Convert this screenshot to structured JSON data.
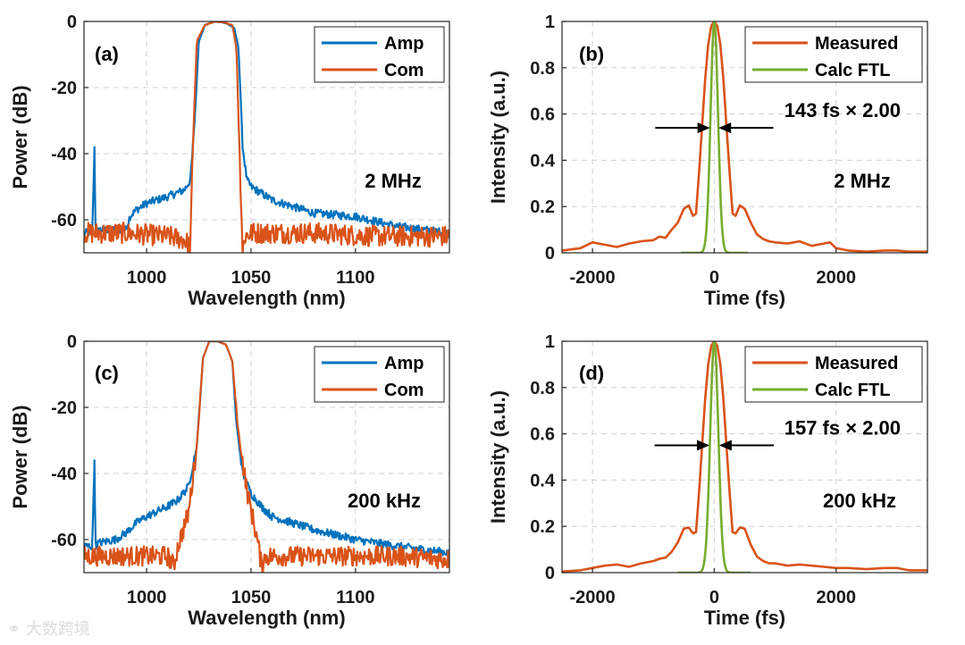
{
  "watermark": "大数跨境",
  "colors": {
    "amp": "#0072BD",
    "com": "#D95319",
    "measured": "#D95319",
    "ftl": "#77AC30"
  },
  "chart_data": [
    {
      "id": "a",
      "type": "line",
      "panel_label": "(a)",
      "xlabel": "Wavelength (nm)",
      "ylabel": "Power (dB)",
      "xlim": [
        970,
        1145
      ],
      "ylim": [
        -70,
        0
      ],
      "xticks": [
        1000,
        1050,
        1100
      ],
      "xtick_labels": [
        "1000",
        "1050",
        "1100"
      ],
      "yticks": [
        0,
        -20,
        -40,
        -60
      ],
      "ytick_labels": [
        "0",
        "-20",
        "-40",
        "-60"
      ],
      "annotation": "2 MHz",
      "legend": {
        "position": "top-right",
        "entries": [
          "Amp",
          "Com"
        ]
      },
      "series": [
        {
          "name": "Amp",
          "color_key": "amp",
          "noise": 1.2,
          "x": [
            970,
            974,
            975,
            975.5,
            976,
            977,
            985,
            990,
            992,
            995,
            1000,
            1010,
            1018,
            1021,
            1023,
            1025,
            1028,
            1033,
            1038,
            1042,
            1044,
            1046,
            1048,
            1050,
            1060,
            1080,
            1100,
            1120,
            1145
          ],
          "y": [
            -64,
            -64,
            -38,
            -64,
            -64,
            -63,
            -63,
            -63,
            -59,
            -57,
            -55,
            -53,
            -51,
            -48,
            -30,
            -6,
            -1,
            0,
            -0.5,
            -2,
            -8,
            -38,
            -48,
            -50,
            -54,
            -58,
            -59,
            -62,
            -64
          ]
        },
        {
          "name": "Com",
          "color_key": "com",
          "noise": 3.2,
          "x": [
            970,
            990,
            1010,
            1018,
            1021,
            1022,
            1024,
            1028,
            1033,
            1038,
            1041,
            1043,
            1045,
            1046,
            1047,
            1050,
            1080,
            1110,
            1145
          ],
          "y": [
            -64,
            -64,
            -65,
            -66,
            -68,
            -40,
            -6,
            -1,
            0,
            -0.5,
            -1,
            -8,
            -50,
            -70,
            -65,
            -64,
            -64,
            -65,
            -65
          ]
        }
      ]
    },
    {
      "id": "b",
      "type": "line",
      "panel_label": "(b)",
      "xlabel": "Time (fs)",
      "ylabel": "Intensity (a.u.)",
      "xlim": [
        -2500,
        3500
      ],
      "ylim": [
        0,
        1
      ],
      "xticks": [
        -2000,
        0,
        2000
      ],
      "xtick_labels": [
        "-2000",
        "0",
        "2000"
      ],
      "yticks": [
        0,
        0.2,
        0.4,
        0.6,
        0.8,
        1
      ],
      "ytick_labels": [
        "0",
        "0.2",
        "0.4",
        "0.6",
        "0.8",
        "1"
      ],
      "annotation": "2 MHz",
      "fwhm_text": "143 fs × 2.00",
      "fwhm_arrows": {
        "y": 0.54,
        "left_tip": -70,
        "right_tip": 70,
        "length": 900
      },
      "legend": {
        "position": "top-right",
        "entries": [
          "Measured",
          "Calc FTL"
        ]
      },
      "series": [
        {
          "name": "Measured",
          "color_key": "measured",
          "x": [
            -2500,
            -2200,
            -2000,
            -1800,
            -1600,
            -1400,
            -1200,
            -1000,
            -900,
            -800,
            -700,
            -600,
            -500,
            -420,
            -350,
            -300,
            -250,
            -200,
            -150,
            -100,
            -50,
            0,
            50,
            100,
            150,
            200,
            250,
            300,
            350,
            420,
            500,
            600,
            700,
            800,
            900,
            1000,
            1200,
            1400,
            1600,
            1800,
            1900,
            2000,
            2200,
            2500,
            2800,
            3000,
            3200,
            3500
          ],
          "y": [
            0.01,
            0.02,
            0.045,
            0.035,
            0.025,
            0.04,
            0.05,
            0.055,
            0.07,
            0.065,
            0.1,
            0.13,
            0.19,
            0.205,
            0.16,
            0.17,
            0.35,
            0.55,
            0.75,
            0.9,
            0.98,
            1.0,
            0.98,
            0.9,
            0.75,
            0.55,
            0.35,
            0.17,
            0.16,
            0.205,
            0.19,
            0.13,
            0.08,
            0.06,
            0.05,
            0.045,
            0.04,
            0.05,
            0.03,
            0.04,
            0.045,
            0.02,
            0.01,
            0.005,
            0.01,
            0.01,
            0.005,
            0.005
          ]
        },
        {
          "name": "Calc FTL",
          "color_key": "ftl",
          "gauss_fwhm": 143,
          "x_range": [
            -550,
            550
          ],
          "y": []
        }
      ]
    },
    {
      "id": "c",
      "type": "line",
      "panel_label": "(c)",
      "xlabel": "Wavelength (nm)",
      "ylabel": "Power (dB)",
      "xlim": [
        970,
        1145
      ],
      "ylim": [
        -70,
        0
      ],
      "xticks": [
        1000,
        1050,
        1100
      ],
      "xtick_labels": [
        "1000",
        "1050",
        "1100"
      ],
      "yticks": [
        0,
        -20,
        -40,
        -60
      ],
      "ytick_labels": [
        "0",
        "-20",
        "-40",
        "-60"
      ],
      "annotation": "200 kHz",
      "legend": {
        "position": "top-right",
        "entries": [
          "Amp",
          "Com"
        ]
      },
      "series": [
        {
          "name": "Amp",
          "color_key": "amp",
          "noise": 1.2,
          "x": [
            970,
            974,
            975,
            975.5,
            976,
            977,
            985,
            990,
            995,
            1000,
            1010,
            1015,
            1020,
            1024,
            1027,
            1030,
            1034,
            1038,
            1041,
            1043,
            1046,
            1050,
            1055,
            1060,
            1080,
            1100,
            1120,
            1145
          ],
          "y": [
            -62,
            -62,
            -36,
            -62,
            -62,
            -61,
            -60,
            -58,
            -55,
            -53,
            -50,
            -48,
            -44,
            -32,
            -5,
            0,
            0,
            -1,
            -6,
            -25,
            -40,
            -46,
            -50,
            -53,
            -57,
            -60,
            -62,
            -64
          ]
        },
        {
          "name": "Com",
          "color_key": "com",
          "noise": 3.0,
          "x": [
            970,
            990,
            1010,
            1013,
            1015,
            1020,
            1024,
            1027,
            1030,
            1034,
            1038,
            1041,
            1044,
            1048,
            1053,
            1055,
            1057,
            1060,
            1090,
            1120,
            1145
          ],
          "y": [
            -65,
            -65,
            -65,
            -68,
            -62,
            -52,
            -32,
            -5,
            0,
            0,
            -1,
            -6,
            -28,
            -45,
            -60,
            -68,
            -65,
            -65,
            -65,
            -65,
            -66
          ]
        }
      ]
    },
    {
      "id": "d",
      "type": "line",
      "panel_label": "(d)",
      "xlabel": "Time (fs)",
      "ylabel": "Intensity (a.u.)",
      "xlim": [
        -2500,
        3500
      ],
      "ylim": [
        0,
        1
      ],
      "xticks": [
        -2000,
        0,
        2000
      ],
      "xtick_labels": [
        "-2000",
        "0",
        "2000"
      ],
      "yticks": [
        0,
        0.2,
        0.4,
        0.6,
        0.8,
        1
      ],
      "ytick_labels": [
        "0",
        "0.2",
        "0.4",
        "0.6",
        "0.8",
        "1"
      ],
      "annotation": "200 kHz",
      "fwhm_text": "157 fs × 2.00",
      "fwhm_arrows": {
        "y": 0.55,
        "left_tip": -80,
        "right_tip": 80,
        "length": 900
      },
      "legend": {
        "position": "top-right",
        "entries": [
          "Measured",
          "Calc FTL"
        ]
      },
      "series": [
        {
          "name": "Measured",
          "color_key": "measured",
          "x": [
            -2500,
            -2200,
            -2000,
            -1800,
            -1600,
            -1400,
            -1200,
            -1000,
            -900,
            -800,
            -700,
            -600,
            -500,
            -420,
            -350,
            -300,
            -250,
            -200,
            -150,
            -100,
            -50,
            0,
            50,
            100,
            150,
            200,
            250,
            300,
            350,
            420,
            500,
            600,
            700,
            800,
            900,
            1000,
            1200,
            1400,
            1600,
            1800,
            2000,
            2200,
            2500,
            2800,
            3000,
            3200,
            3500
          ],
          "y": [
            0.005,
            0.01,
            0.02,
            0.03,
            0.035,
            0.025,
            0.04,
            0.05,
            0.06,
            0.065,
            0.09,
            0.13,
            0.19,
            0.195,
            0.17,
            0.175,
            0.35,
            0.55,
            0.75,
            0.9,
            0.98,
            1.0,
            0.98,
            0.9,
            0.75,
            0.55,
            0.35,
            0.175,
            0.17,
            0.195,
            0.19,
            0.12,
            0.07,
            0.05,
            0.04,
            0.04,
            0.03,
            0.035,
            0.03,
            0.025,
            0.02,
            0.02,
            0.015,
            0.02,
            0.02,
            0.01,
            0.01
          ]
        },
        {
          "name": "Calc FTL",
          "color_key": "ftl",
          "gauss_fwhm": 157,
          "x_range": [
            -600,
            600
          ],
          "y": []
        }
      ]
    }
  ]
}
